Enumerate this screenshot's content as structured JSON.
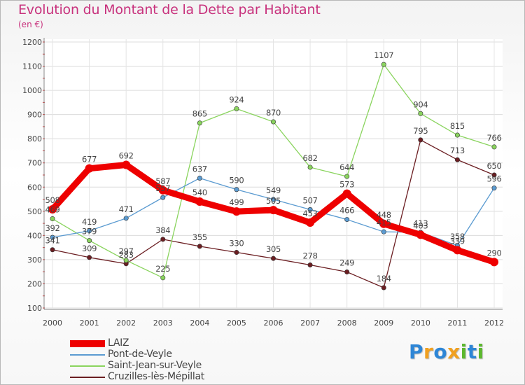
{
  "chart_data": {
    "type": "line",
    "title": "Evolution du Montant de la Dette par Habitant",
    "subtitle": "(en €)",
    "x": [
      "2000",
      "2001",
      "2002",
      "2003",
      "2004",
      "2005",
      "2006",
      "2007",
      "2008",
      "2009",
      "2010",
      "2011",
      "2012"
    ],
    "ylim": [
      100,
      1200
    ],
    "yticks": [
      "100",
      "200",
      "300",
      "400",
      "500",
      "600",
      "700",
      "800",
      "900",
      "1000",
      "1100",
      "1200"
    ],
    "grid": true,
    "legend_position": "bottom-left",
    "series": [
      {
        "name": "LAIZ",
        "color": "#ee0000",
        "values": [
          508,
          677,
          692,
          587,
          540,
          499,
          505,
          453,
          573,
          448,
          403,
          339,
          290
        ]
      },
      {
        "name": "Pont-de-Veyle",
        "color": "#5b9bd1",
        "values": [
          392,
          419,
          471,
          557,
          637,
          590,
          549,
          507,
          466,
          415,
          413,
          358,
          596
        ]
      },
      {
        "name": "Saint-Jean-sur-Veyle",
        "color": "#8ad45e",
        "values": [
          469,
          379,
          297,
          225,
          865,
          924,
          870,
          682,
          644,
          1107,
          904,
          815,
          766
        ]
      },
      {
        "name": "Cruzilles-lès-Mépillat",
        "color": "#6b1e22",
        "values": [
          341,
          309,
          283,
          384,
          355,
          330,
          305,
          278,
          249,
          184,
          795,
          713,
          650
        ]
      }
    ]
  },
  "logo": {
    "letters": [
      "P",
      "r",
      "o",
      "x",
      "i",
      "t",
      "i"
    ],
    "colors": [
      "#2e86d6",
      "#f0a020",
      "#2e86d6",
      "#f0a020",
      "#5cb82e",
      "#2e86d6",
      "#5cb82e"
    ]
  }
}
